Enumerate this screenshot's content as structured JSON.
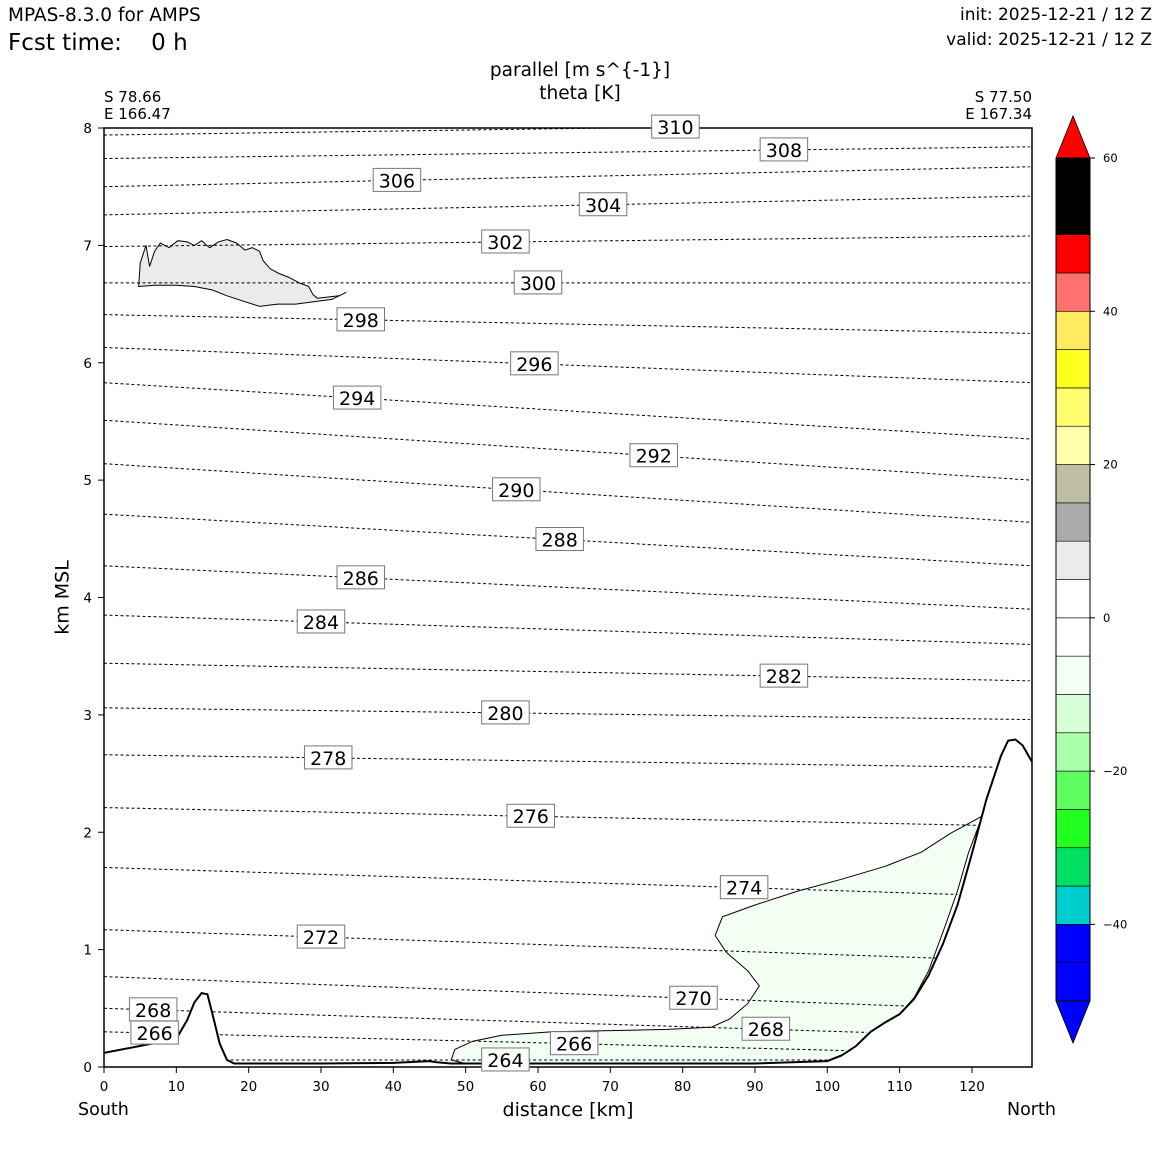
{
  "header": {
    "model": "MPAS-8.3.0 for AMPS",
    "fcst_time": "Fcst time:    0 h",
    "init": "init: 2025-12-21 / 12 Z",
    "valid": "valid: 2025-12-21 / 12 Z"
  },
  "chart_data": {
    "type": "contour",
    "title": [
      "parallel [m s^{-1}]",
      "theta [K]"
    ],
    "xlabel": "distance [km]",
    "ylabel": "km MSL",
    "xlim": [
      0,
      128.3
    ],
    "ylim": [
      0,
      8
    ],
    "xticks": [
      0,
      10,
      20,
      30,
      40,
      50,
      60,
      70,
      80,
      90,
      100,
      110,
      120
    ],
    "yticks": [
      0,
      1,
      2,
      3,
      4,
      5,
      6,
      7,
      8
    ],
    "end_left": {
      "direction": "South",
      "coord1": "S 78.66",
      "coord2": "E 166.47"
    },
    "end_right": {
      "direction": "North",
      "coord1": "S 77.50",
      "coord2": "E 167.34"
    },
    "colorbar": {
      "ticks": [
        "60",
        "40",
        "20",
        "0",
        "−20",
        "−40"
      ],
      "tick_values": [
        60,
        40,
        20,
        0,
        -20,
        -40
      ],
      "levels": [
        -50,
        -45,
        -40,
        -35,
        -30,
        -25,
        -20,
        -15,
        -10,
        -5,
        0,
        5,
        10,
        15,
        20,
        25,
        30,
        35,
        40,
        45,
        50,
        55,
        60
      ],
      "colors": [
        "#0000ff",
        "#0000ff",
        "#00cdcd",
        "#00e060",
        "#20ff20",
        "#60ff60",
        "#aaffaa",
        "#d8ffd8",
        "#f2fff2",
        "#ffffff",
        "#ffffff",
        "#ebebeb",
        "#aaaaaa",
        "#bebea4",
        "#ffffaa",
        "#ffff70",
        "#ffff20",
        "#ffea60",
        "#ff7070",
        "#ff0000"
      ],
      "under": "#0000ff",
      "over": "#ff0000"
    },
    "theta_contours": [
      {
        "label": "264",
        "y": [
          0.06,
          0.06
        ]
      },
      {
        "label": "266",
        "y": [
          0.3,
          0.1
        ]
      },
      {
        "label": "268",
        "y": [
          0.5,
          0.25
        ]
      },
      {
        "label": "270",
        "y": [
          0.77,
          0.48
        ]
      },
      {
        "label": "272",
        "y": [
          1.17,
          0.9
        ]
      },
      {
        "label": "274",
        "y": [
          1.7,
          1.45
        ]
      },
      {
        "label": "276",
        "y": [
          2.21,
          2.05
        ]
      },
      {
        "label": "278",
        "y": [
          2.66,
          2.55
        ]
      },
      {
        "label": "280",
        "y": [
          3.06,
          2.96
        ]
      },
      {
        "label": "282",
        "y": [
          3.44,
          3.29
        ]
      },
      {
        "label": "284",
        "y": [
          3.85,
          3.6
        ]
      },
      {
        "label": "286",
        "y": [
          4.27,
          3.9
        ]
      },
      {
        "label": "288",
        "y": [
          4.71,
          4.27
        ]
      },
      {
        "label": "290",
        "y": [
          5.14,
          4.64
        ]
      },
      {
        "label": "292",
        "y": [
          5.51,
          5.0
        ]
      },
      {
        "label": "294",
        "y": [
          5.83,
          5.35
        ]
      },
      {
        "label": "296",
        "y": [
          6.13,
          5.83
        ]
      },
      {
        "label": "298",
        "y": [
          6.41,
          6.25
        ]
      },
      {
        "label": "300",
        "y": [
          6.68,
          6.68
        ]
      },
      {
        "label": "302",
        "y": [
          6.99,
          7.08
        ]
      },
      {
        "label": "304",
        "y": [
          7.26,
          7.42
        ]
      },
      {
        "label": "306",
        "y": [
          7.5,
          7.67
        ]
      },
      {
        "label": "308",
        "y": [
          7.74,
          7.84
        ]
      },
      {
        "label": "310",
        "y": [
          7.94,
          8.05
        ]
      }
    ],
    "shaded_regions": [
      {
        "name": "positive-wind-region",
        "range": "10 to 15"
      },
      {
        "name": "negative-wind-region",
        "range": "-5 to -10"
      }
    ],
    "terrain": {
      "x": [
        0,
        5,
        10,
        11.5,
        12.5,
        13.5,
        14.3,
        15,
        16,
        17,
        18,
        19,
        21,
        23,
        30,
        40,
        45,
        46,
        48,
        55,
        65,
        75,
        82,
        90,
        100,
        102,
        104,
        106,
        108,
        110,
        112,
        114,
        116,
        118,
        120,
        122,
        124,
        125,
        126,
        127,
        128.3
      ],
      "y": [
        0.12,
        0.18,
        0.24,
        0.4,
        0.55,
        0.63,
        0.62,
        0.45,
        0.2,
        0.06,
        0.03,
        0.03,
        0.03,
        0.03,
        0.03,
        0.035,
        0.05,
        0.04,
        0.03,
        0.03,
        0.03,
        0.03,
        0.03,
        0.03,
        0.05,
        0.1,
        0.18,
        0.3,
        0.38,
        0.45,
        0.58,
        0.78,
        1.05,
        1.38,
        1.82,
        2.28,
        2.65,
        2.78,
        2.79,
        2.74,
        2.6
      ]
    }
  }
}
